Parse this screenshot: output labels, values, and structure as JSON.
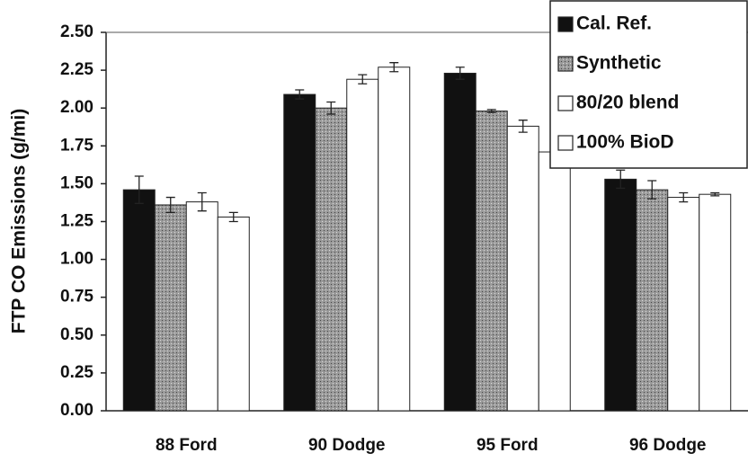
{
  "chart_data": {
    "type": "bar",
    "y_label": "FTP CO Emissions (g/mi)",
    "categories": [
      "88 Ford",
      "90 Dodge",
      "95 Ford",
      "96 Dodge"
    ],
    "series": [
      {
        "name": "Cal. Ref.",
        "color": "#111111",
        "values": [
          1.46,
          2.09,
          2.23,
          1.53
        ],
        "errors": [
          0.09,
          0.03,
          0.04,
          0.06
        ]
      },
      {
        "name": "Synthetic",
        "color": "#8a8a8a",
        "values": [
          1.36,
          2.0,
          1.98,
          1.46
        ],
        "errors": [
          0.05,
          0.04,
          0.01,
          0.06
        ]
      },
      {
        "name": "80/20 blend",
        "color": "#ffffff",
        "values": [
          1.38,
          2.19,
          1.88,
          1.41
        ],
        "errors": [
          0.06,
          0.03,
          0.04,
          0.03
        ]
      },
      {
        "name": "100% BioD",
        "color": "#ffffff",
        "values": [
          1.28,
          2.27,
          1.71,
          1.43
        ],
        "errors": [
          0.03,
          0.03,
          0.08,
          0.01
        ]
      }
    ],
    "ylim": [
      0,
      2.5
    ],
    "yticks": [
      {
        "value": 0,
        "label": "0.00"
      },
      0.25,
      {
        "value": 0.5,
        "label": "0.50"
      },
      0.75,
      {
        "value": 1,
        "label": "1.00"
      },
      1.25,
      {
        "value": 1.5,
        "label": "1.50"
      },
      1.75,
      {
        "value": 2,
        "label": "2.00"
      },
      2.25,
      {
        "value": 2.5,
        "label": "2.50"
      }
    ],
    "legend": "top-right",
    "grid": false
  }
}
